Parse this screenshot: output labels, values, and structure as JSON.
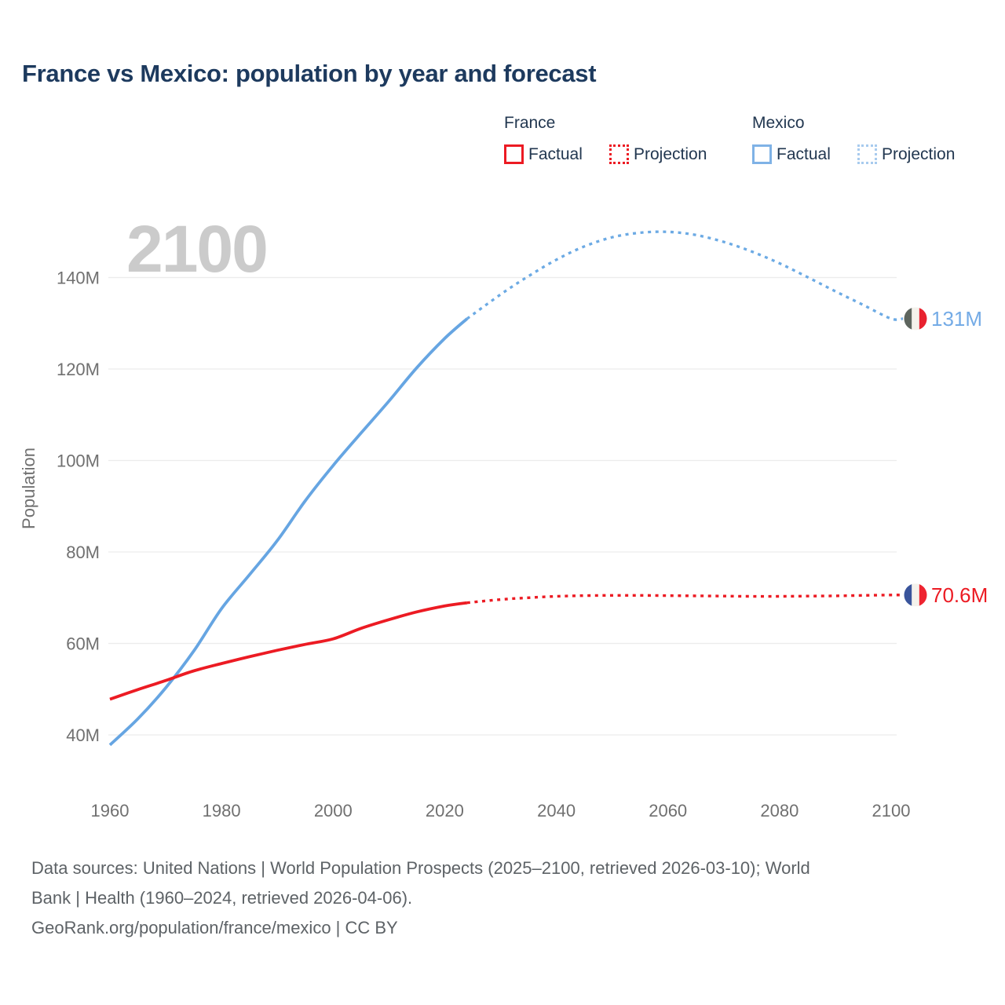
{
  "title": "France vs Mexico: population by year and forecast",
  "watermark": "2100",
  "legend": {
    "france": {
      "header": "France",
      "factual": "Factual",
      "projection": "Projection"
    },
    "mexico": {
      "header": "Mexico",
      "factual": "Factual",
      "projection": "Projection"
    }
  },
  "colors": {
    "title_text": "#1d3a5e",
    "legend_text": "#223750",
    "axis_text": "#707070",
    "watermark_text": "#cbcbcb",
    "footer_text": "#5d6266",
    "gridline": "#ececec",
    "france_line": "#ec1b23",
    "mexico_line": "#66a5e2",
    "mexico_projection_line": "#6caae4",
    "france_label": "#ec1b23",
    "mexico_label": "#74abe6",
    "legend_france_swatch": "#ec1b23",
    "legend_mexico_solid_swatch": "#7fb2e6",
    "legend_mexico_dotted_swatch": "#a8cbee"
  },
  "flags": {
    "mexico": {
      "stripes": [
        "#5d655e",
        "#f4f2ec",
        "#e8222f"
      ],
      "emblem": "#a8574b"
    },
    "france": {
      "stripes": [
        "#39549b",
        "#f4f2ec",
        "#ee2430"
      ]
    }
  },
  "chart_data": {
    "type": "line",
    "title": "France vs Mexico: population by year and forecast",
    "xlabel": "",
    "ylabel": "Population",
    "x_range": [
      1960,
      2100
    ],
    "y_range": [
      33,
      153
    ],
    "grid": "horizontal",
    "y_ticks": [
      {
        "value": 40,
        "label": "40M"
      },
      {
        "value": 60,
        "label": "60M"
      },
      {
        "value": 80,
        "label": "80M"
      },
      {
        "value": 100,
        "label": "100M"
      },
      {
        "value": 120,
        "label": "120M"
      },
      {
        "value": 140,
        "label": "140M"
      }
    ],
    "x_ticks": [
      {
        "value": 1960,
        "label": "1960"
      },
      {
        "value": 1980,
        "label": "1980"
      },
      {
        "value": 2000,
        "label": "2000"
      },
      {
        "value": 2020,
        "label": "2020"
      },
      {
        "value": 2040,
        "label": "2040"
      },
      {
        "value": 2060,
        "label": "2060"
      },
      {
        "value": 2080,
        "label": "2080"
      },
      {
        "value": 2100,
        "label": "2100"
      }
    ],
    "series": [
      {
        "name": "Mexico Factual",
        "country": "Mexico",
        "style": "solid",
        "color": "#66a5e2",
        "width": 3.8,
        "points": [
          [
            1960,
            37.8
          ],
          [
            1965,
            43.5
          ],
          [
            1970,
            50.3
          ],
          [
            1975,
            58.3
          ],
          [
            1980,
            67.6
          ],
          [
            1985,
            75.0
          ],
          [
            1990,
            82.5
          ],
          [
            1995,
            91.2
          ],
          [
            2000,
            98.9
          ],
          [
            2005,
            106.0
          ],
          [
            2010,
            113.0
          ],
          [
            2015,
            120.3
          ],
          [
            2020,
            126.7
          ],
          [
            2024,
            131.0
          ]
        ]
      },
      {
        "name": "Mexico Projection",
        "country": "Mexico",
        "style": "dotted",
        "color": "#6caae4",
        "width": 3.3,
        "extend_to_flag": true,
        "points": [
          [
            2024,
            131.0
          ],
          [
            2030,
            136.3
          ],
          [
            2035,
            140.3
          ],
          [
            2040,
            143.9
          ],
          [
            2045,
            146.8
          ],
          [
            2050,
            148.8
          ],
          [
            2055,
            149.8
          ],
          [
            2060,
            150.0
          ],
          [
            2065,
            149.3
          ],
          [
            2070,
            147.8
          ],
          [
            2075,
            145.7
          ],
          [
            2080,
            143.1
          ],
          [
            2085,
            140.1
          ],
          [
            2090,
            137.0
          ],
          [
            2095,
            134.0
          ],
          [
            2100,
            131.0
          ]
        ]
      },
      {
        "name": "France Factual",
        "country": "France",
        "style": "solid",
        "color": "#ec1b23",
        "width": 3.8,
        "points": [
          [
            1960,
            47.8
          ],
          [
            1965,
            49.9
          ],
          [
            1970,
            51.9
          ],
          [
            1975,
            54.0
          ],
          [
            1980,
            55.6
          ],
          [
            1985,
            57.1
          ],
          [
            1990,
            58.5
          ],
          [
            1995,
            59.8
          ],
          [
            2000,
            61.0
          ],
          [
            2005,
            63.3
          ],
          [
            2010,
            65.2
          ],
          [
            2015,
            66.9
          ],
          [
            2020,
            68.2
          ],
          [
            2024,
            68.9
          ]
        ]
      },
      {
        "name": "France Projection",
        "country": "France",
        "style": "dotted",
        "color": "#ec1b23",
        "width": 3.4,
        "extend_to_flag": true,
        "points": [
          [
            2024,
            68.9
          ],
          [
            2030,
            69.6
          ],
          [
            2035,
            70.0
          ],
          [
            2040,
            70.3
          ],
          [
            2045,
            70.45
          ],
          [
            2050,
            70.5
          ],
          [
            2055,
            70.5
          ],
          [
            2060,
            70.45
          ],
          [
            2065,
            70.4
          ],
          [
            2070,
            70.35
          ],
          [
            2075,
            70.3
          ],
          [
            2080,
            70.3
          ],
          [
            2085,
            70.35
          ],
          [
            2090,
            70.4
          ],
          [
            2095,
            70.5
          ],
          [
            2100,
            70.6
          ]
        ]
      }
    ],
    "end_labels": [
      {
        "series": "Mexico",
        "label": "131M",
        "value": 131.0,
        "flag": "mexico",
        "color": "#74abe6"
      },
      {
        "series": "France",
        "label": "70.6M",
        "value": 70.6,
        "flag": "france",
        "color": "#ec1b23"
      }
    ]
  },
  "footer": {
    "lines": [
      "Data sources: United Nations | World Population Prospects (2025–2100, retrieved 2026-03-10); World",
      "Bank | Health (1960–2024, retrieved 2026-04-06).",
      "GeoRank.org/population/france/mexico | CC BY"
    ]
  }
}
